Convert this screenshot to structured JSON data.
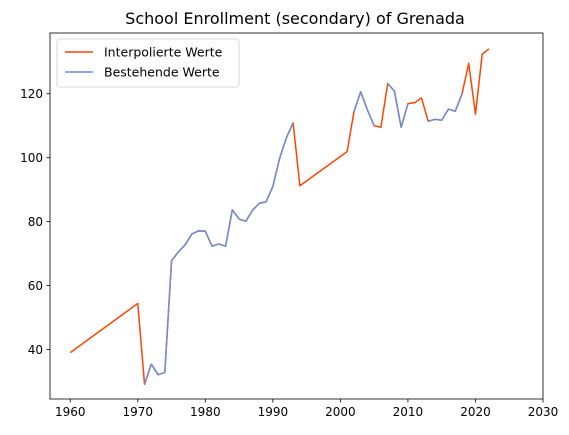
{
  "chart_data": {
    "type": "line",
    "title": "School Enrollment (secondary) of Grenada",
    "xlabel": "",
    "ylabel": "",
    "xlim": [
      1957,
      2030
    ],
    "ylim": [
      24.5,
      139
    ],
    "xticks": [
      1960,
      1970,
      1980,
      1990,
      2000,
      2010,
      2020,
      2030
    ],
    "yticks": [
      40,
      60,
      80,
      100,
      120
    ],
    "legend_position": "top-left",
    "series": [
      {
        "name": "Interpolierte Werte",
        "color": "#ff4500",
        "points": [
          [
            1960,
            39.0
          ],
          [
            1970,
            54.4
          ],
          [
            1971,
            29.1
          ],
          [
            1972,
            35.4
          ],
          [
            1973,
            32.1
          ],
          [
            1974,
            32.8
          ],
          [
            1975,
            67.8
          ],
          [
            1976,
            70.5
          ],
          [
            1977,
            72.7
          ],
          [
            1978,
            76.1
          ],
          [
            1979,
            77.1
          ],
          [
            1980,
            77.0
          ],
          [
            1981,
            72.3
          ],
          [
            1982,
            73.0
          ],
          [
            1983,
            72.3
          ],
          [
            1984,
            83.7
          ],
          [
            1985,
            80.8
          ],
          [
            1986,
            80.1
          ],
          [
            1987,
            83.6
          ],
          [
            1988,
            85.7
          ],
          [
            1989,
            86.2
          ],
          [
            1990,
            91.0
          ],
          [
            1991,
            99.8
          ],
          [
            1992,
            106.2
          ],
          [
            1993,
            110.9
          ],
          [
            1994,
            91.2
          ],
          [
            2001,
            101.9
          ],
          [
            2002,
            114.3
          ],
          [
            2003,
            120.6
          ],
          [
            2004,
            114.9
          ],
          [
            2005,
            110.0
          ],
          [
            2006,
            109.5
          ],
          [
            2007,
            123.2
          ],
          [
            2008,
            120.8
          ],
          [
            2009,
            109.5
          ],
          [
            2010,
            116.9
          ],
          [
            2011,
            117.2
          ],
          [
            2012,
            118.7
          ],
          [
            2013,
            111.4
          ],
          [
            2014,
            112.0
          ],
          [
            2015,
            111.7
          ],
          [
            2016,
            115.2
          ],
          [
            2017,
            114.5
          ],
          [
            2018,
            119.9
          ],
          [
            2019,
            129.5
          ],
          [
            2020,
            113.6
          ],
          [
            2021,
            132.4
          ],
          [
            2022,
            134.0
          ]
        ]
      },
      {
        "name": "Bestehende Werte",
        "color": "#6b8fdb",
        "segments": [
          [
            [
              1971,
              29.1
            ],
            [
              1972,
              35.4
            ],
            [
              1973,
              32.1
            ],
            [
              1974,
              32.8
            ],
            [
              1975,
              67.8
            ],
            [
              1976,
              70.5
            ],
            [
              1977,
              72.7
            ],
            [
              1978,
              76.1
            ],
            [
              1979,
              77.1
            ],
            [
              1980,
              77.0
            ],
            [
              1981,
              72.3
            ],
            [
              1982,
              73.0
            ],
            [
              1983,
              72.3
            ],
            [
              1984,
              83.7
            ],
            [
              1985,
              80.8
            ],
            [
              1986,
              80.1
            ],
            [
              1987,
              83.6
            ],
            [
              1988,
              85.7
            ],
            [
              1989,
              86.2
            ],
            [
              1990,
              91.0
            ],
            [
              1991,
              99.8
            ],
            [
              1992,
              106.2
            ],
            [
              1993,
              110.9
            ]
          ],
          [
            [
              2002,
              114.3
            ],
            [
              2003,
              120.6
            ],
            [
              2004,
              114.9
            ],
            [
              2005,
              110.0
            ]
          ],
          [
            [
              2007,
              123.2
            ],
            [
              2008,
              120.8
            ],
            [
              2009,
              109.5
            ],
            [
              2010,
              116.9
            ]
          ],
          [
            [
              2013,
              111.4
            ],
            [
              2014,
              112.0
            ],
            [
              2015,
              111.7
            ],
            [
              2016,
              115.2
            ],
            [
              2017,
              114.5
            ],
            [
              2018,
              119.9
            ]
          ]
        ]
      }
    ]
  }
}
